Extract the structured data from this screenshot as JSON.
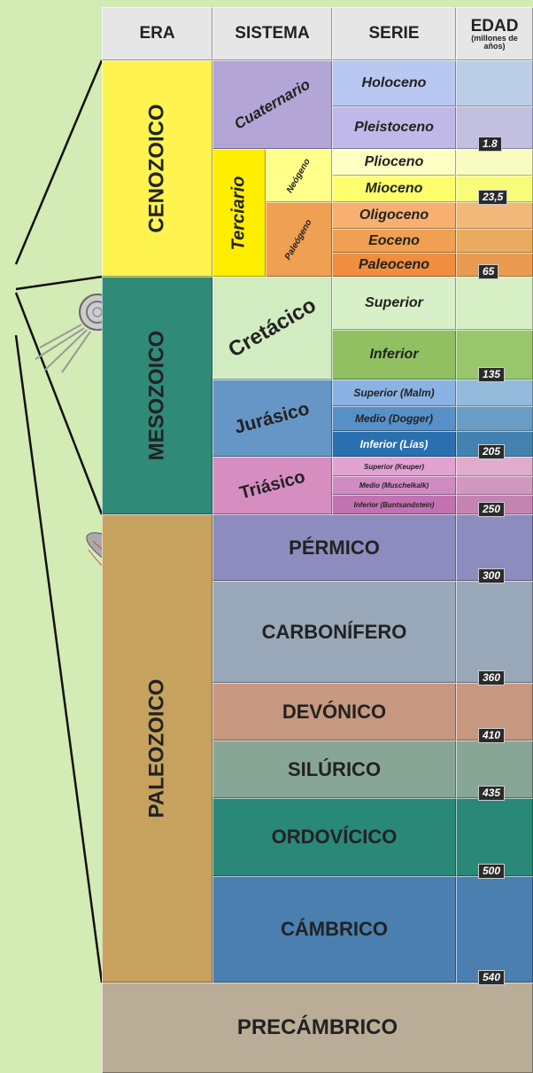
{
  "header": {
    "era": "ERA",
    "sistema": "SISTEMA",
    "serie": "SERIE",
    "edad": "EDAD",
    "edad_unit": "(millones de años)"
  },
  "eras": [
    "CENOZOICO",
    "MESOZOICO",
    "PALEOZOICO",
    "PRECÁMBRICO"
  ],
  "sistemas": [
    "Cuaternario",
    "Terciario",
    "Neógeno",
    "Paleógeno",
    "Cretácico",
    "Jurásico",
    "Triásico",
    "PÉRMICO",
    "CARBONÍFERO",
    "DEVÓNICO",
    "SILÚRICO",
    "ORDOVÍCICO",
    "CÁMBRICO"
  ],
  "series": [
    "Holoceno",
    "Pleistoceno",
    "Plioceno",
    "Mioceno",
    "Oligoceno",
    "Eoceno",
    "Paleoceno",
    "Superior",
    "Inferior",
    "Superior (Malm)",
    "Medio (Dogger)",
    "Inferior (Lías)",
    "Superior (Keuper)",
    "Medio (Muschelkalk)",
    "Inferior (Buntsandstein)"
  ],
  "ages": [
    "1.8",
    "23,5",
    "65",
    "135",
    "205",
    "250",
    "300",
    "360",
    "410",
    "435",
    "500",
    "540"
  ]
}
